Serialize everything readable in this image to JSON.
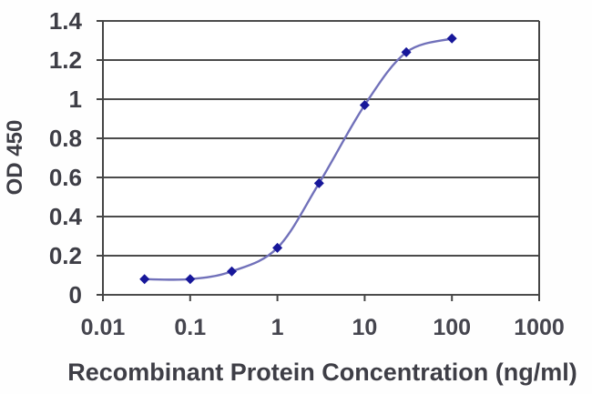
{
  "chart_data": {
    "type": "line",
    "title": "",
    "xlabel": "Recombinant Protein Concentration (ng/ml)",
    "ylabel": "OD 450",
    "x_scale": "log",
    "xlim": [
      0.01,
      1000
    ],
    "ylim": [
      0,
      1.4
    ],
    "x_ticks": [
      0.01,
      0.1,
      1,
      10,
      100,
      1000
    ],
    "x_tick_labels": [
      "0.01",
      "0.1",
      "1",
      "10",
      "100",
      "1000"
    ],
    "y_ticks": [
      0,
      0.2,
      0.4,
      0.6,
      0.8,
      1.0,
      1.2,
      1.4
    ],
    "y_tick_labels": [
      "0",
      "0.2",
      "0.4",
      "0.6",
      "0.8",
      "1",
      "1.2",
      "1.4"
    ],
    "grid": "horizontal",
    "legend": "none",
    "series": [
      {
        "x": [
          0.03,
          0.1,
          0.3,
          1,
          3,
          10,
          30,
          100
        ],
        "y": [
          0.08,
          0.08,
          0.12,
          0.24,
          0.57,
          0.97,
          1.24,
          1.31
        ],
        "marker": "diamond",
        "line_color": "#7171ba",
        "marker_color": "#17179a"
      }
    ],
    "colors": {
      "grid": "#4b4b4b",
      "text": "#3e3e46",
      "plot_background": "#ffffff"
    }
  }
}
